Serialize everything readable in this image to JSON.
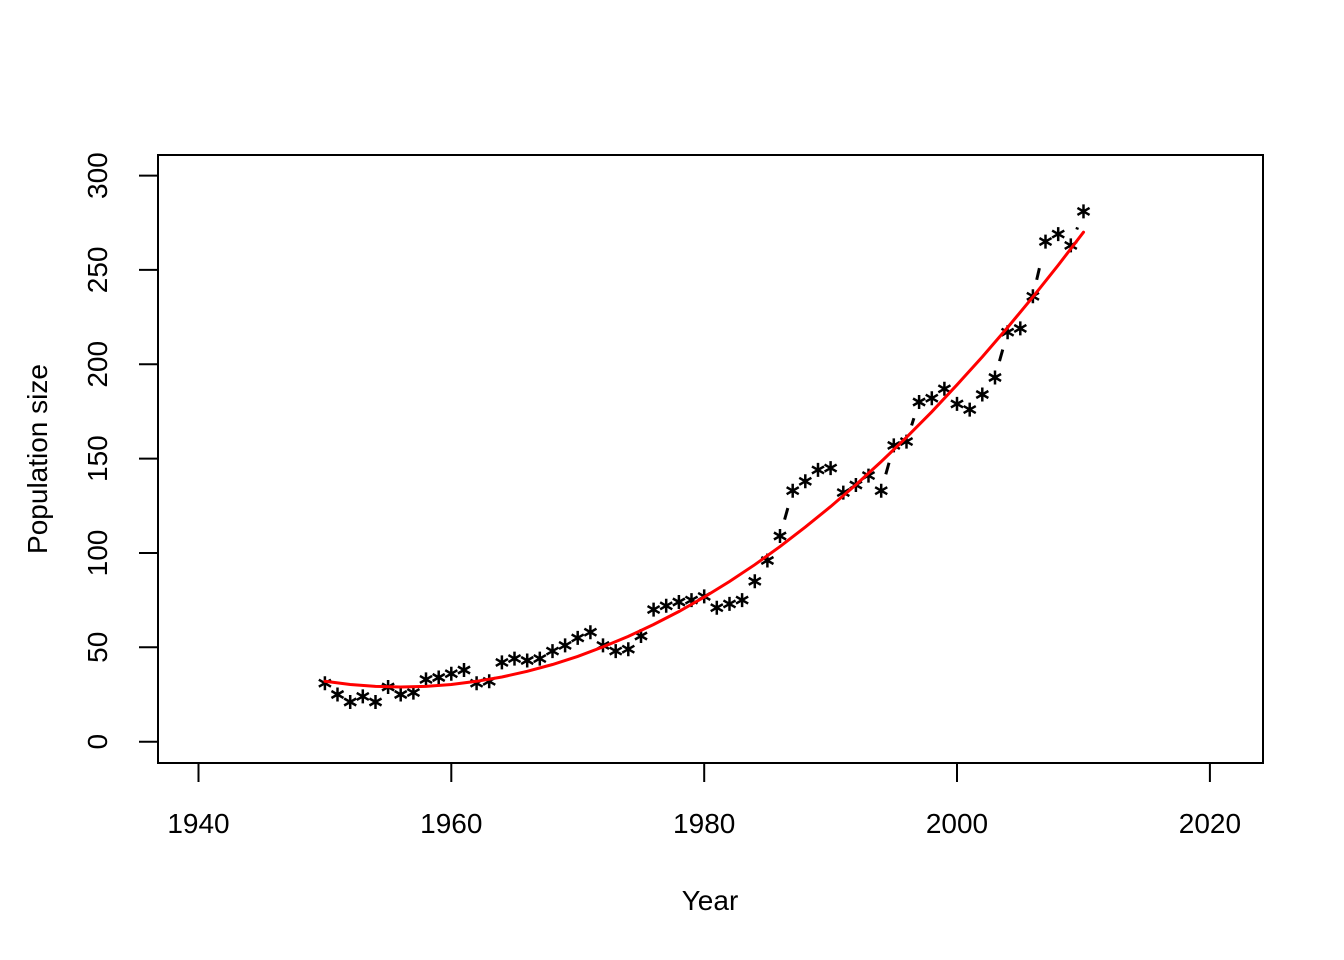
{
  "chart_data": {
    "type": "scatter",
    "title": "",
    "xlabel": "Year",
    "ylabel": "Population size",
    "x_tick_labels": [
      "1940",
      "1960",
      "1980",
      "2000",
      "2020"
    ],
    "x_ticks": [
      1940,
      1960,
      1980,
      2000,
      2020
    ],
    "y_tick_labels": [
      "0",
      "50",
      "100",
      "150",
      "200",
      "250",
      "300"
    ],
    "y_ticks": [
      0,
      50,
      100,
      150,
      200,
      250,
      300
    ],
    "xlim": [
      1936.8,
      2024.2
    ],
    "ylim": [
      -11.3,
      310.9
    ],
    "grid": false,
    "legend": "none",
    "marker": "asterisk",
    "series": [
      {
        "name": "observed-population",
        "style": "points-with-dashed-line",
        "color": "#000000",
        "x": [
          1950,
          1951,
          1952,
          1953,
          1954,
          1955,
          1956,
          1957,
          1958,
          1959,
          1960,
          1961,
          1962,
          1963,
          1964,
          1965,
          1966,
          1967,
          1968,
          1969,
          1970,
          1971,
          1972,
          1973,
          1974,
          1975,
          1976,
          1977,
          1978,
          1979,
          1980,
          1981,
          1982,
          1983,
          1984,
          1985,
          1986,
          1987,
          1988,
          1989,
          1990,
          1991,
          1992,
          1993,
          1994,
          1995,
          1996,
          1997,
          1998,
          1999,
          2000,
          2001,
          2002,
          2003,
          2004,
          2005,
          2006,
          2007,
          2008,
          2009,
          2010
        ],
        "y": [
          31,
          25,
          21,
          24,
          21,
          29,
          25,
          26,
          33,
          34,
          36,
          38,
          31,
          32,
          42,
          44,
          43,
          44,
          48,
          51,
          55,
          58,
          51,
          48,
          49,
          56,
          70,
          72,
          74,
          75,
          77,
          71,
          73,
          75,
          85,
          96,
          109,
          133,
          138,
          144,
          145,
          132,
          136,
          141,
          133,
          157,
          159,
          180,
          182,
          187,
          179,
          176,
          184,
          193,
          217,
          219,
          236,
          265,
          269,
          263,
          281
        ]
      },
      {
        "name": "fitted-curve",
        "style": "smooth-line",
        "color": "#FF0000",
        "x": [
          1950,
          1952,
          1954,
          1956,
          1958,
          1960,
          1962,
          1964,
          1966,
          1968,
          1970,
          1972,
          1974,
          1976,
          1978,
          1980,
          1982,
          1984,
          1986,
          1988,
          1990,
          1992,
          1994,
          1996,
          1998,
          2000,
          2002,
          2004,
          2006,
          2008,
          2010
        ],
        "y": [
          32.0,
          30.3,
          29.3,
          29.0,
          29.3,
          30.3,
          32.0,
          34.3,
          37.3,
          40.9,
          45.2,
          50.2,
          55.8,
          62.1,
          69.0,
          76.6,
          84.9,
          93.8,
          103.4,
          113.7,
          124.6,
          136.2,
          148.4,
          161.3,
          174.8,
          189.1,
          203.9,
          219.5,
          235.7,
          252.5,
          270.0
        ]
      }
    ]
  },
  "colors": {
    "background": "#FFFFFF",
    "axis": "#000000",
    "points": "#000000",
    "dashed_line": "#000000",
    "fit_line": "#FF0000"
  }
}
